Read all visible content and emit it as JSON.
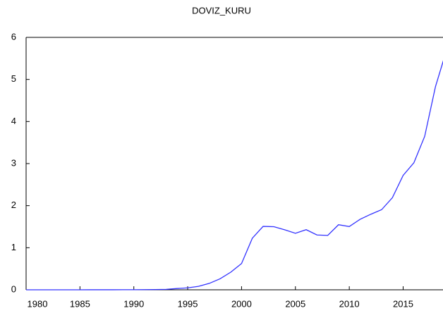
{
  "chart_data": {
    "type": "line",
    "title": "DOVIZ_KURU",
    "x": [
      1980,
      1981,
      1982,
      1983,
      1984,
      1985,
      1986,
      1987,
      1988,
      1989,
      1990,
      1991,
      1992,
      1993,
      1994,
      1995,
      1996,
      1997,
      1998,
      1999,
      2000,
      2001,
      2002,
      2003,
      2004,
      2005,
      2006,
      2007,
      2008,
      2009,
      2010,
      2011,
      2012,
      2013,
      2014,
      2015,
      2016,
      2017,
      2018,
      2019
    ],
    "series": [
      {
        "name": "DOVIZ_KURU",
        "color": "#3333ff",
        "values": [
          8e-05,
          0.00011,
          0.00016,
          0.00023,
          0.00037,
          0.00052,
          0.00067,
          0.00086,
          0.0014,
          0.0021,
          0.0026,
          0.0042,
          0.0069,
          0.011,
          0.03,
          0.046,
          0.081,
          0.152,
          0.261,
          0.419,
          0.625,
          1.226,
          1.507,
          1.5,
          1.426,
          1.344,
          1.429,
          1.303,
          1.293,
          1.546,
          1.503,
          1.675,
          1.796,
          1.904,
          2.189,
          2.72,
          3.02,
          3.648,
          4.828,
          5.674
        ]
      }
    ],
    "xlim": [
      1980,
      2018.7
    ],
    "xticks": [
      1980,
      1985,
      1990,
      1995,
      2000,
      2005,
      2010,
      2015
    ],
    "ylim": [
      0,
      6
    ],
    "yticks": [
      0,
      1,
      2,
      3,
      4,
      5,
      6
    ]
  }
}
